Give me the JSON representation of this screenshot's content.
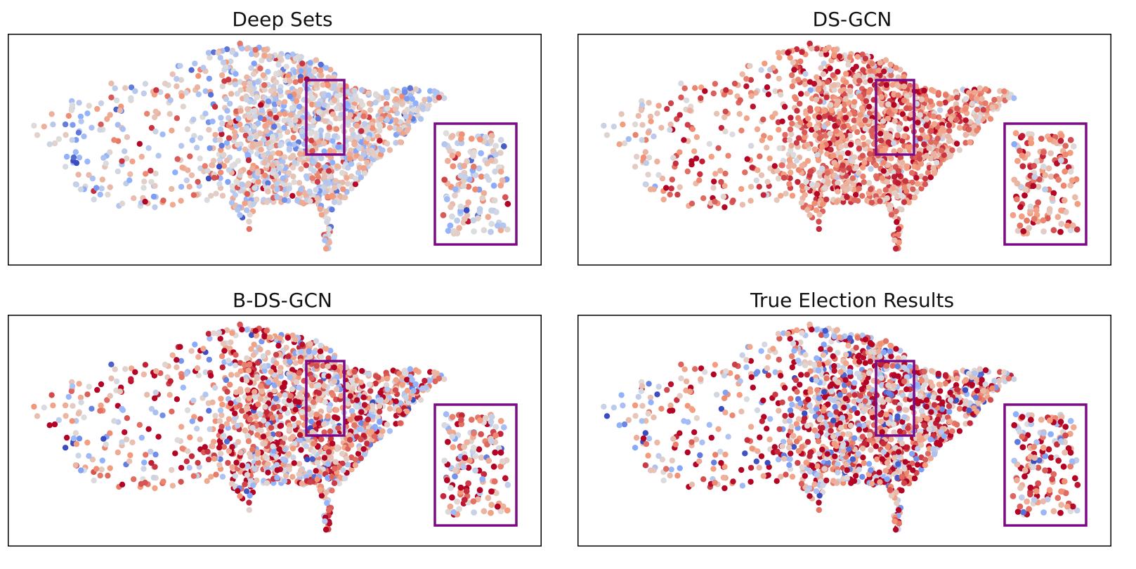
{
  "figure": {
    "colormap": "coolwarm",
    "inset_color": "#7b0a84",
    "frame_color": "#000000",
    "description_note": "US county-level election results (red = Republican lean, blue = Democratic lean)"
  },
  "chart_data": [
    {
      "type": "scatter",
      "title": "Deep Sets",
      "xlabel": "",
      "ylabel": "",
      "grid": false,
      "axes_ticks": false,
      "value_range": [
        -1,
        1
      ],
      "mean_value": 0.08,
      "spread": 0.38,
      "zoom_inset": {
        "shown": true,
        "magnified_region": "upper midwest"
      }
    },
    {
      "type": "scatter",
      "title": "DS-GCN",
      "xlabel": "",
      "ylabel": "",
      "grid": false,
      "axes_ticks": false,
      "value_range": [
        -1,
        1
      ],
      "mean_value": 0.52,
      "spread": 0.32,
      "zoom_inset": {
        "shown": true,
        "magnified_region": "upper midwest"
      }
    },
    {
      "type": "scatter",
      "title": "B-DS-GCN",
      "xlabel": "",
      "ylabel": "",
      "grid": false,
      "axes_ticks": false,
      "value_range": [
        -1,
        1
      ],
      "mean_value": 0.38,
      "spread": 0.55,
      "zoom_inset": {
        "shown": true,
        "magnified_region": "upper midwest"
      }
    },
    {
      "type": "scatter",
      "title": "True Election Results",
      "xlabel": "",
      "ylabel": "",
      "grid": false,
      "axes_ticks": false,
      "value_range": [
        -1,
        1
      ],
      "mean_value": 0.42,
      "spread": 0.65,
      "zoom_inset": {
        "shown": true,
        "magnified_region": "upper midwest"
      }
    }
  ]
}
